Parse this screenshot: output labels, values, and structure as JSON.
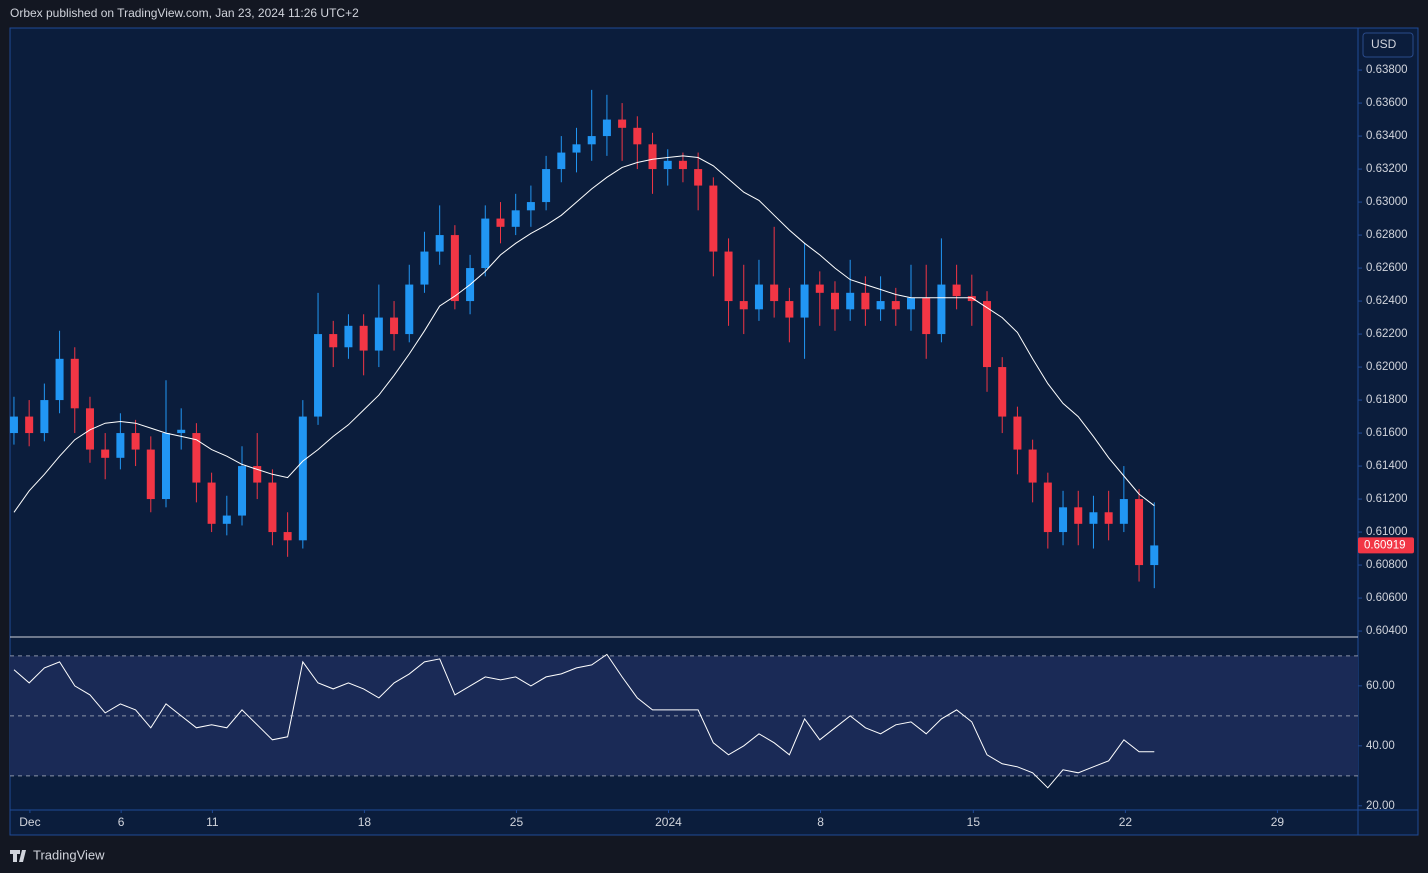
{
  "header": "Orbex published on TradingView.com, Jan 23, 2024 11:26 UTC+2",
  "currency": "USD",
  "footer": "TradingView",
  "chart_data": [
    {
      "type": "candlestick",
      "up_color": "#2196f3",
      "down_color": "#f23645",
      "xlim": [
        -0.26,
        88.4
      ],
      "ylim": [
        0.60364,
        0.64055
      ],
      "yticks": [
        {
          "value": 0.604,
          "label": "0.60400"
        },
        {
          "value": 0.606,
          "label": "0.60600"
        },
        {
          "value": 0.608,
          "label": "0.60800"
        },
        {
          "value": 0.61,
          "label": "0.61000"
        },
        {
          "value": 0.612,
          "label": "0.61200"
        },
        {
          "value": 0.614,
          "label": "0.61400"
        },
        {
          "value": 0.616,
          "label": "0.61600"
        },
        {
          "value": 0.618,
          "label": "0.61800"
        },
        {
          "value": 0.62,
          "label": "0.62000"
        },
        {
          "value": 0.622,
          "label": "0.62200"
        },
        {
          "value": 0.624,
          "label": "0.62400"
        },
        {
          "value": 0.626,
          "label": "0.62600"
        },
        {
          "value": 0.628,
          "label": "0.62800"
        },
        {
          "value": 0.63,
          "label": "0.63000"
        },
        {
          "value": 0.632,
          "label": "0.63200"
        },
        {
          "value": 0.634,
          "label": "0.63400"
        },
        {
          "value": 0.636,
          "label": "0.63600"
        },
        {
          "value": 0.638,
          "label": "0.63800"
        }
      ],
      "last_price": {
        "value": 0.60919,
        "label": "0.60919",
        "color": "#f23645"
      },
      "candles": [
        [
          0.616,
          0.6182,
          0.6153,
          0.617
        ],
        [
          0.617,
          0.618,
          0.6152,
          0.616
        ],
        [
          0.616,
          0.619,
          0.6155,
          0.618
        ],
        [
          0.618,
          0.6222,
          0.6172,
          0.6205
        ],
        [
          0.6205,
          0.6212,
          0.616,
          0.6175
        ],
        [
          0.6175,
          0.6182,
          0.6142,
          0.615
        ],
        [
          0.615,
          0.616,
          0.6132,
          0.6145
        ],
        [
          0.6145,
          0.6172,
          0.6138,
          0.616
        ],
        [
          0.616,
          0.6168,
          0.614,
          0.615
        ],
        [
          0.615,
          0.6158,
          0.6112,
          0.612
        ],
        [
          0.612,
          0.6192,
          0.6115,
          0.616
        ],
        [
          0.616,
          0.6175,
          0.615,
          0.6162
        ],
        [
          0.616,
          0.6166,
          0.6118,
          0.613
        ],
        [
          0.613,
          0.6136,
          0.61,
          0.6105
        ],
        [
          0.6105,
          0.6122,
          0.6098,
          0.611
        ],
        [
          0.611,
          0.6152,
          0.6104,
          0.614
        ],
        [
          0.614,
          0.616,
          0.612,
          0.613
        ],
        [
          0.613,
          0.6138,
          0.6092,
          0.61
        ],
        [
          0.61,
          0.6112,
          0.6085,
          0.6095
        ],
        [
          0.6095,
          0.618,
          0.609,
          0.617
        ],
        [
          0.617,
          0.6245,
          0.6165,
          0.622
        ],
        [
          0.622,
          0.6228,
          0.62,
          0.6212
        ],
        [
          0.6212,
          0.6232,
          0.6205,
          0.6225
        ],
        [
          0.6225,
          0.6232,
          0.6195,
          0.621
        ],
        [
          0.621,
          0.625,
          0.62,
          0.623
        ],
        [
          0.623,
          0.624,
          0.621,
          0.622
        ],
        [
          0.622,
          0.6262,
          0.6215,
          0.625
        ],
        [
          0.625,
          0.6282,
          0.6245,
          0.627
        ],
        [
          0.627,
          0.6298,
          0.6262,
          0.628
        ],
        [
          0.628,
          0.6286,
          0.6235,
          0.624
        ],
        [
          0.624,
          0.6268,
          0.6232,
          0.626
        ],
        [
          0.626,
          0.6298,
          0.6255,
          0.629
        ],
        [
          0.629,
          0.63,
          0.6275,
          0.6285
        ],
        [
          0.6285,
          0.6305,
          0.628,
          0.6295
        ],
        [
          0.6295,
          0.631,
          0.6285,
          0.63
        ],
        [
          0.63,
          0.6328,
          0.6295,
          0.632
        ],
        [
          0.632,
          0.634,
          0.6312,
          0.633
        ],
        [
          0.633,
          0.6345,
          0.6318,
          0.6335
        ],
        [
          0.6335,
          0.6368,
          0.6325,
          0.634
        ],
        [
          0.634,
          0.6365,
          0.6328,
          0.635
        ],
        [
          0.635,
          0.636,
          0.6325,
          0.6345
        ],
        [
          0.6345,
          0.6352,
          0.632,
          0.6335
        ],
        [
          0.6335,
          0.6342,
          0.6305,
          0.632
        ],
        [
          0.632,
          0.6332,
          0.631,
          0.6325
        ],
        [
          0.6325,
          0.633,
          0.6312,
          0.632
        ],
        [
          0.632,
          0.633,
          0.6295,
          0.631
        ],
        [
          0.631,
          0.6315,
          0.6255,
          0.627
        ],
        [
          0.627,
          0.6278,
          0.6225,
          0.624
        ],
        [
          0.624,
          0.6262,
          0.622,
          0.6235
        ],
        [
          0.6235,
          0.6265,
          0.6228,
          0.625
        ],
        [
          0.625,
          0.6285,
          0.623,
          0.624
        ],
        [
          0.624,
          0.6248,
          0.6215,
          0.623
        ],
        [
          0.623,
          0.6275,
          0.6205,
          0.625
        ],
        [
          0.625,
          0.6258,
          0.6225,
          0.6245
        ],
        [
          0.6245,
          0.6252,
          0.6222,
          0.6235
        ],
        [
          0.6235,
          0.6265,
          0.6228,
          0.6245
        ],
        [
          0.6245,
          0.6255,
          0.6225,
          0.6235
        ],
        [
          0.6235,
          0.6255,
          0.6228,
          0.624
        ],
        [
          0.624,
          0.6248,
          0.6225,
          0.6235
        ],
        [
          0.6235,
          0.6262,
          0.6222,
          0.6242
        ],
        [
          0.6242,
          0.6262,
          0.6205,
          0.622
        ],
        [
          0.622,
          0.6278,
          0.6215,
          0.625
        ],
        [
          0.625,
          0.6262,
          0.6235,
          0.6243
        ],
        [
          0.6243,
          0.6256,
          0.6225,
          0.624
        ],
        [
          0.624,
          0.6246,
          0.6185,
          0.62
        ],
        [
          0.62,
          0.6206,
          0.616,
          0.617
        ],
        [
          0.617,
          0.6176,
          0.6135,
          0.615
        ],
        [
          0.615,
          0.6156,
          0.6118,
          0.613
        ],
        [
          0.613,
          0.6136,
          0.609,
          0.61
        ],
        [
          0.61,
          0.6125,
          0.6092,
          0.6115
        ],
        [
          0.6115,
          0.6125,
          0.6092,
          0.6105
        ],
        [
          0.6105,
          0.6122,
          0.609,
          0.6112
        ],
        [
          0.6112,
          0.6125,
          0.6095,
          0.6105
        ],
        [
          0.6105,
          0.614,
          0.61,
          0.612
        ],
        [
          0.612,
          0.6126,
          0.607,
          0.608
        ],
        [
          0.608,
          0.6118,
          0.6066,
          0.60919
        ]
      ],
      "series": [
        {
          "color": "#ffffff",
          "values": [
            0.6112,
            0.6125,
            0.6135,
            0.6146,
            0.6156,
            0.6162,
            0.6166,
            0.6167,
            0.6166,
            0.6163,
            0.616,
            0.6158,
            0.6156,
            0.615,
            0.6146,
            0.6141,
            0.6138,
            0.6135,
            0.6133,
            0.6143,
            0.615,
            0.6158,
            0.6165,
            0.6174,
            0.6183,
            0.6195,
            0.6208,
            0.6222,
            0.6237,
            0.6243,
            0.625,
            0.6258,
            0.6268,
            0.6275,
            0.6281,
            0.6286,
            0.6292,
            0.63,
            0.6308,
            0.6315,
            0.6321,
            0.6324,
            0.6326,
            0.6327,
            0.6328,
            0.6327,
            0.6322,
            0.6314,
            0.6306,
            0.6301,
            0.6292,
            0.6283,
            0.6275,
            0.6268,
            0.626,
            0.6253,
            0.625,
            0.6247,
            0.6244,
            0.6242,
            0.6242,
            0.6242,
            0.6242,
            0.6242,
            0.6236,
            0.623,
            0.6221,
            0.6205,
            0.619,
            0.6178,
            0.617,
            0.6158,
            0.6145,
            0.6134,
            0.6123,
            0.6116
          ]
        }
      ]
    },
    {
      "type": "line",
      "xlim": [
        -0.26,
        88.4
      ],
      "ylim": [
        18.6,
        76.3
      ],
      "yticks": [
        {
          "value": 20,
          "label": "20.00"
        },
        {
          "value": 40,
          "label": "40.00"
        },
        {
          "value": 60,
          "label": "60.00"
        }
      ],
      "levels": [
        30,
        50,
        70
      ],
      "band_color": "#1a2a56",
      "xticks": [
        {
          "value": 1.05,
          "label": "Dec"
        },
        {
          "value": 7.05,
          "label": "6"
        },
        {
          "value": 13.05,
          "label": "11"
        },
        {
          "value": 23.05,
          "label": "18"
        },
        {
          "value": 33.05,
          "label": "25"
        },
        {
          "value": 43.05,
          "label": "2024"
        },
        {
          "value": 53.05,
          "label": "8"
        },
        {
          "value": 63.1,
          "label": "15"
        },
        {
          "value": 73.1,
          "label": "22"
        },
        {
          "value": 83.1,
          "label": "29"
        }
      ],
      "series": [
        {
          "color": "#ffffff",
          "values": [
            65.4,
            61,
            66,
            68,
            60,
            57,
            51,
            54,
            52,
            46,
            54,
            50,
            46,
            47,
            46,
            52,
            47,
            42,
            43,
            68,
            61,
            59,
            61,
            59,
            56,
            61,
            64,
            68,
            69,
            57,
            60,
            63,
            62,
            63,
            60,
            63,
            64,
            66,
            67,
            70.5,
            63,
            56,
            52,
            52,
            52,
            52,
            41,
            37,
            40,
            44,
            41,
            37,
            49,
            42,
            46,
            50,
            46,
            44,
            47,
            48,
            44,
            49,
            52,
            48,
            37,
            34,
            33,
            31,
            26,
            32,
            31,
            33,
            35,
            42,
            38,
            38
          ]
        }
      ]
    }
  ]
}
